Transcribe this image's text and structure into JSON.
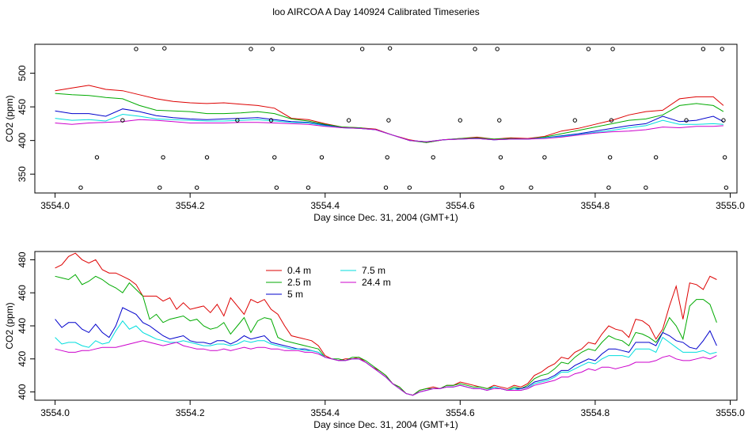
{
  "title": "loo AIRCOA A  Day 140924  Calibrated Timeseries",
  "chart_data": [
    {
      "type": "line+scatter",
      "xlabel": "Day since Dec. 31, 2004 (GMT+1)",
      "ylabel": "CO2 (ppm)",
      "xlim": [
        3553.97,
        3555.01
      ],
      "ylim": [
        322,
        543
      ],
      "xticks": [
        "3554.0",
        "3554.2",
        "3554.4",
        "3554.6",
        "3554.8",
        "3555.0"
      ],
      "yticks": [
        "350",
        "400",
        "450",
        "500"
      ],
      "legend": "none",
      "x": [
        3554.0,
        3554.025,
        3554.05,
        3554.075,
        3554.1,
        3554.125,
        3554.15,
        3554.175,
        3554.2,
        3554.225,
        3554.25,
        3554.275,
        3554.3,
        3554.325,
        3554.35,
        3554.375,
        3554.4,
        3554.425,
        3554.45,
        3554.475,
        3554.5,
        3554.525,
        3554.55,
        3554.575,
        3554.6,
        3554.625,
        3554.65,
        3554.675,
        3554.7,
        3554.725,
        3554.75,
        3554.775,
        3554.8,
        3554.825,
        3554.85,
        3554.875,
        3554.9,
        3554.925,
        3554.95,
        3554.975,
        3554.99
      ],
      "series": [
        {
          "name": "0.4 m",
          "color": "#dd0000",
          "values": [
            474,
            478,
            482,
            476,
            474,
            468,
            462,
            458,
            456,
            455,
            456,
            454,
            452,
            448,
            433,
            431,
            425,
            420,
            419,
            417,
            408,
            401,
            397,
            401,
            403,
            405,
            402,
            404,
            403,
            406,
            414,
            418,
            424,
            430,
            438,
            443,
            445,
            462,
            465,
            465,
            452
          ]
        },
        {
          "name": "2.5 m",
          "color": "#00aa00",
          "values": [
            470,
            468,
            467,
            464,
            462,
            452,
            445,
            444,
            443,
            440,
            440,
            441,
            443,
            440,
            432,
            429,
            424,
            420,
            419,
            416,
            408,
            400,
            397,
            401,
            403,
            404,
            402,
            403,
            402,
            405,
            410,
            415,
            420,
            425,
            430,
            432,
            438,
            452,
            455,
            452,
            443
          ]
        },
        {
          "name": "5 m",
          "color": "#0000cc",
          "values": [
            444,
            440,
            440,
            436,
            447,
            443,
            437,
            434,
            432,
            431,
            432,
            433,
            434,
            431,
            428,
            427,
            423,
            419,
            418,
            416,
            408,
            400,
            398,
            401,
            402,
            403,
            401,
            402,
            402,
            404,
            407,
            410,
            414,
            418,
            422,
            425,
            436,
            428,
            430,
            436,
            428
          ]
        },
        {
          "name": "7.5 m",
          "color": "#00dddd",
          "values": [
            433,
            430,
            431,
            429,
            439,
            436,
            432,
            431,
            430,
            429,
            429,
            430,
            431,
            429,
            427,
            426,
            422,
            419,
            418,
            416,
            408,
            400,
            398,
            401,
            402,
            403,
            401,
            402,
            402,
            404,
            406,
            409,
            412,
            415,
            419,
            422,
            430,
            424,
            424,
            425,
            424
          ]
        },
        {
          "name": "24.4 m",
          "color": "#cc00cc",
          "values": [
            426,
            424,
            426,
            427,
            428,
            431,
            430,
            428,
            426,
            426,
            426,
            427,
            427,
            426,
            425,
            424,
            421,
            419,
            418,
            416,
            408,
            400,
            398,
            401,
            402,
            403,
            401,
            402,
            402,
            403,
            405,
            408,
            411,
            413,
            414,
            416,
            420,
            419,
            421,
            421,
            422
          ]
        },
        {
          "name": "",
          "type": "scatter",
          "color": "#000000",
          "points": [
            [
              3554.038,
              330
            ],
            [
              3554.062,
              375
            ],
            [
              3554.1,
              430
            ],
            [
              3554.12,
              536
            ],
            [
              3554.155,
              330
            ],
            [
              3554.16,
              375
            ],
            [
              3554.162,
              537
            ],
            [
              3554.21,
              330
            ],
            [
              3554.225,
              375
            ],
            [
              3554.27,
              430
            ],
            [
              3554.29,
              536
            ],
            [
              3554.32,
              430
            ],
            [
              3554.322,
              536
            ],
            [
              3554.325,
              375
            ],
            [
              3554.328,
              330
            ],
            [
              3554.375,
              330
            ],
            [
              3554.395,
              375
            ],
            [
              3554.435,
              430
            ],
            [
              3554.455,
              536
            ],
            [
              3554.49,
              330
            ],
            [
              3554.492,
              375
            ],
            [
              3554.494,
              430
            ],
            [
              3554.496,
              537
            ],
            [
              3554.525,
              330
            ],
            [
              3554.56,
              375
            ],
            [
              3554.6,
              430
            ],
            [
              3554.622,
              536
            ],
            [
              3554.655,
              536
            ],
            [
              3554.658,
              430
            ],
            [
              3554.66,
              375
            ],
            [
              3554.662,
              330
            ],
            [
              3554.705,
              330
            ],
            [
              3554.725,
              375
            ],
            [
              3554.77,
              430
            ],
            [
              3554.79,
              536
            ],
            [
              3554.82,
              330
            ],
            [
              3554.822,
              375
            ],
            [
              3554.824,
              430
            ],
            [
              3554.826,
              536
            ],
            [
              3554.875,
              330
            ],
            [
              3554.89,
              375
            ],
            [
              3554.935,
              430
            ],
            [
              3554.96,
              536
            ],
            [
              3554.988,
              536
            ],
            [
              3554.99,
              430
            ],
            [
              3554.992,
              375
            ],
            [
              3554.994,
              330
            ]
          ]
        }
      ]
    },
    {
      "type": "line",
      "xlabel": "Day since Dec. 31, 2004 (GMT+1)",
      "ylabel": "CO2 (ppm)",
      "xlim": [
        3553.97,
        3555.01
      ],
      "ylim": [
        395,
        485
      ],
      "xticks": [
        "3554.0",
        "3554.2",
        "3554.4",
        "3554.6",
        "3554.8",
        "3555.0"
      ],
      "yticks": [
        "400",
        "420",
        "440",
        "460",
        "480"
      ],
      "legend": "top-center",
      "x": [
        3554.0,
        3554.01,
        3554.02,
        3554.03,
        3554.04,
        3554.05,
        3554.06,
        3554.07,
        3554.08,
        3554.09,
        3554.1,
        3554.11,
        3554.12,
        3554.13,
        3554.14,
        3554.15,
        3554.16,
        3554.17,
        3554.18,
        3554.19,
        3554.2,
        3554.21,
        3554.22,
        3554.23,
        3554.24,
        3554.25,
        3554.26,
        3554.27,
        3554.28,
        3554.29,
        3554.3,
        3554.31,
        3554.32,
        3554.33,
        3554.34,
        3554.35,
        3554.36,
        3554.37,
        3554.38,
        3554.39,
        3554.4,
        3554.41,
        3554.42,
        3554.43,
        3554.44,
        3554.45,
        3554.46,
        3554.47,
        3554.48,
        3554.49,
        3554.5,
        3554.51,
        3554.52,
        3554.53,
        3554.54,
        3554.55,
        3554.56,
        3554.57,
        3554.58,
        3554.59,
        3554.6,
        3554.61,
        3554.62,
        3554.63,
        3554.64,
        3554.65,
        3554.66,
        3554.67,
        3554.68,
        3554.69,
        3554.7,
        3554.71,
        3554.72,
        3554.73,
        3554.74,
        3554.75,
        3554.76,
        3554.77,
        3554.78,
        3554.79,
        3554.8,
        3554.81,
        3554.82,
        3554.83,
        3554.84,
        3554.85,
        3554.86,
        3554.87,
        3554.88,
        3554.89,
        3554.9,
        3554.91,
        3554.92,
        3554.93,
        3554.94,
        3554.95,
        3554.96,
        3554.97,
        3554.98
      ],
      "series": [
        {
          "name": "0.4 m",
          "color": "#dd0000",
          "values": [
            475,
            477,
            482,
            484,
            480,
            478,
            480,
            474,
            472,
            472,
            470,
            468,
            465,
            458,
            458,
            458,
            455,
            457,
            450,
            454,
            450,
            451,
            452,
            448,
            453,
            446,
            457,
            452,
            447,
            456,
            454,
            456,
            450,
            447,
            440,
            434,
            433,
            432,
            431,
            428,
            422,
            420,
            419,
            420,
            420,
            421,
            418,
            415,
            413,
            410,
            405,
            403,
            399,
            398,
            401,
            402,
            403,
            402,
            404,
            404,
            406,
            405,
            404,
            403,
            402,
            404,
            403,
            402,
            404,
            403,
            405,
            410,
            412,
            415,
            417,
            421,
            420,
            424,
            426,
            430,
            429,
            435,
            440,
            438,
            437,
            433,
            444,
            443,
            440,
            432,
            438,
            452,
            464,
            444,
            466,
            465,
            462,
            470,
            468
          ]
        },
        {
          "name": "2.5 m",
          "color": "#00aa00",
          "values": [
            470,
            469,
            468,
            471,
            465,
            467,
            470,
            468,
            465,
            463,
            460,
            466,
            462,
            458,
            444,
            447,
            442,
            444,
            445,
            446,
            443,
            444,
            440,
            438,
            439,
            442,
            435,
            440,
            445,
            436,
            443,
            445,
            444,
            433,
            431,
            430,
            429,
            428,
            427,
            426,
            421,
            420,
            420,
            419,
            421,
            421,
            419,
            416,
            413,
            410,
            405,
            403,
            399,
            398,
            401,
            402,
            402,
            402,
            404,
            404,
            405,
            404,
            403,
            403,
            402,
            403,
            402,
            401,
            403,
            402,
            404,
            408,
            410,
            411,
            414,
            418,
            417,
            421,
            424,
            426,
            425,
            430,
            434,
            432,
            431,
            428,
            436,
            435,
            433,
            430,
            436,
            445,
            440,
            432,
            452,
            456,
            456,
            453,
            442
          ]
        },
        {
          "name": "5 m",
          "color": "#0000cc",
          "values": [
            444,
            439,
            442,
            442,
            438,
            436,
            441,
            436,
            433,
            440,
            451,
            449,
            447,
            442,
            440,
            437,
            434,
            432,
            433,
            434,
            431,
            430,
            430,
            429,
            431,
            431,
            429,
            431,
            434,
            432,
            433,
            434,
            430,
            429,
            428,
            427,
            426,
            426,
            425,
            424,
            421,
            420,
            419,
            419,
            420,
            420,
            418,
            415,
            412,
            409,
            405,
            402,
            399,
            398,
            400,
            401,
            402,
            402,
            403,
            403,
            404,
            403,
            402,
            402,
            401,
            403,
            402,
            401,
            402,
            402,
            403,
            406,
            407,
            408,
            410,
            413,
            413,
            416,
            418,
            420,
            419,
            423,
            426,
            426,
            425,
            424,
            430,
            430,
            430,
            428,
            436,
            434,
            431,
            430,
            427,
            426,
            431,
            437,
            428
          ]
        },
        {
          "name": "7.5 m",
          "color": "#00dddd",
          "values": [
            433,
            429,
            430,
            430,
            428,
            427,
            431,
            429,
            430,
            437,
            443,
            438,
            440,
            436,
            434,
            432,
            431,
            430,
            430,
            431,
            430,
            429,
            428,
            428,
            429,
            429,
            428,
            429,
            431,
            430,
            431,
            431,
            429,
            428,
            427,
            426,
            426,
            425,
            425,
            424,
            421,
            420,
            419,
            419,
            420,
            420,
            418,
            415,
            412,
            409,
            405,
            402,
            399,
            398,
            400,
            401,
            402,
            402,
            403,
            403,
            404,
            403,
            402,
            402,
            401,
            403,
            402,
            401,
            402,
            401,
            402,
            405,
            406,
            407,
            409,
            412,
            412,
            414,
            416,
            418,
            417,
            420,
            422,
            422,
            422,
            421,
            426,
            426,
            426,
            424,
            433,
            430,
            427,
            424,
            424,
            424,
            425,
            423,
            424
          ]
        },
        {
          "name": "24.4 m",
          "color": "#cc00cc",
          "values": [
            426,
            425,
            424,
            424,
            425,
            425,
            426,
            427,
            427,
            427,
            428,
            429,
            430,
            431,
            430,
            429,
            428,
            429,
            430,
            428,
            427,
            426,
            426,
            425,
            425,
            426,
            425,
            426,
            427,
            426,
            427,
            427,
            426,
            426,
            425,
            425,
            425,
            424,
            424,
            423,
            421,
            420,
            419,
            419,
            420,
            420,
            418,
            415,
            412,
            409,
            405,
            402,
            399,
            398,
            400,
            401,
            402,
            402,
            403,
            403,
            404,
            403,
            402,
            402,
            401,
            402,
            402,
            401,
            401,
            401,
            402,
            404,
            405,
            406,
            407,
            409,
            409,
            411,
            412,
            414,
            413,
            415,
            415,
            414,
            415,
            416,
            418,
            418,
            418,
            419,
            421,
            422,
            420,
            419,
            419,
            420,
            421,
            420,
            422
          ]
        }
      ]
    }
  ]
}
